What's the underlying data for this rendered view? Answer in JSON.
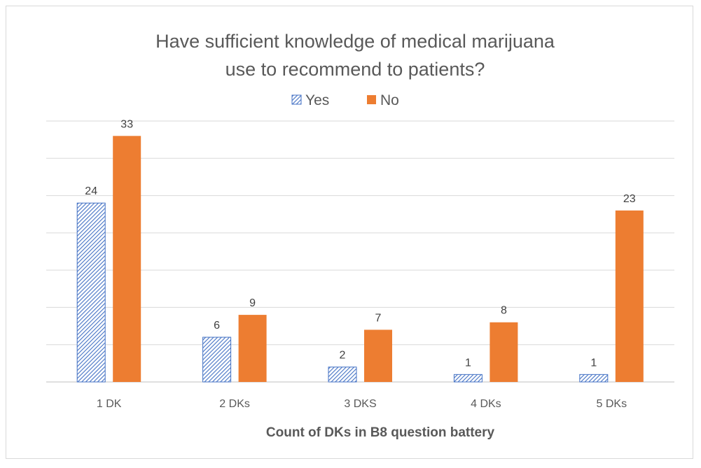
{
  "chart_data": {
    "type": "bar",
    "title_lines": [
      "Have sufficient knowledge of medical marijuana",
      "use to recommend to patients?"
    ],
    "xlabel": "Count of DKs in B8 question battery",
    "ylabel": "",
    "categories": [
      "1 DK",
      "2 DKs",
      "3 DKS",
      "4 DKs",
      "5 DKs"
    ],
    "series": [
      {
        "name": "Yes",
        "values": [
          24,
          6,
          2,
          1,
          1
        ],
        "color": "#4472c4",
        "pattern": "hatch"
      },
      {
        "name": "No",
        "values": [
          33,
          9,
          7,
          8,
          23
        ],
        "color": "#ed7d31",
        "pattern": "solid"
      }
    ],
    "ylim": [
      0,
      35
    ],
    "gridline_step": 5,
    "grid": true,
    "legend_position": "top"
  }
}
